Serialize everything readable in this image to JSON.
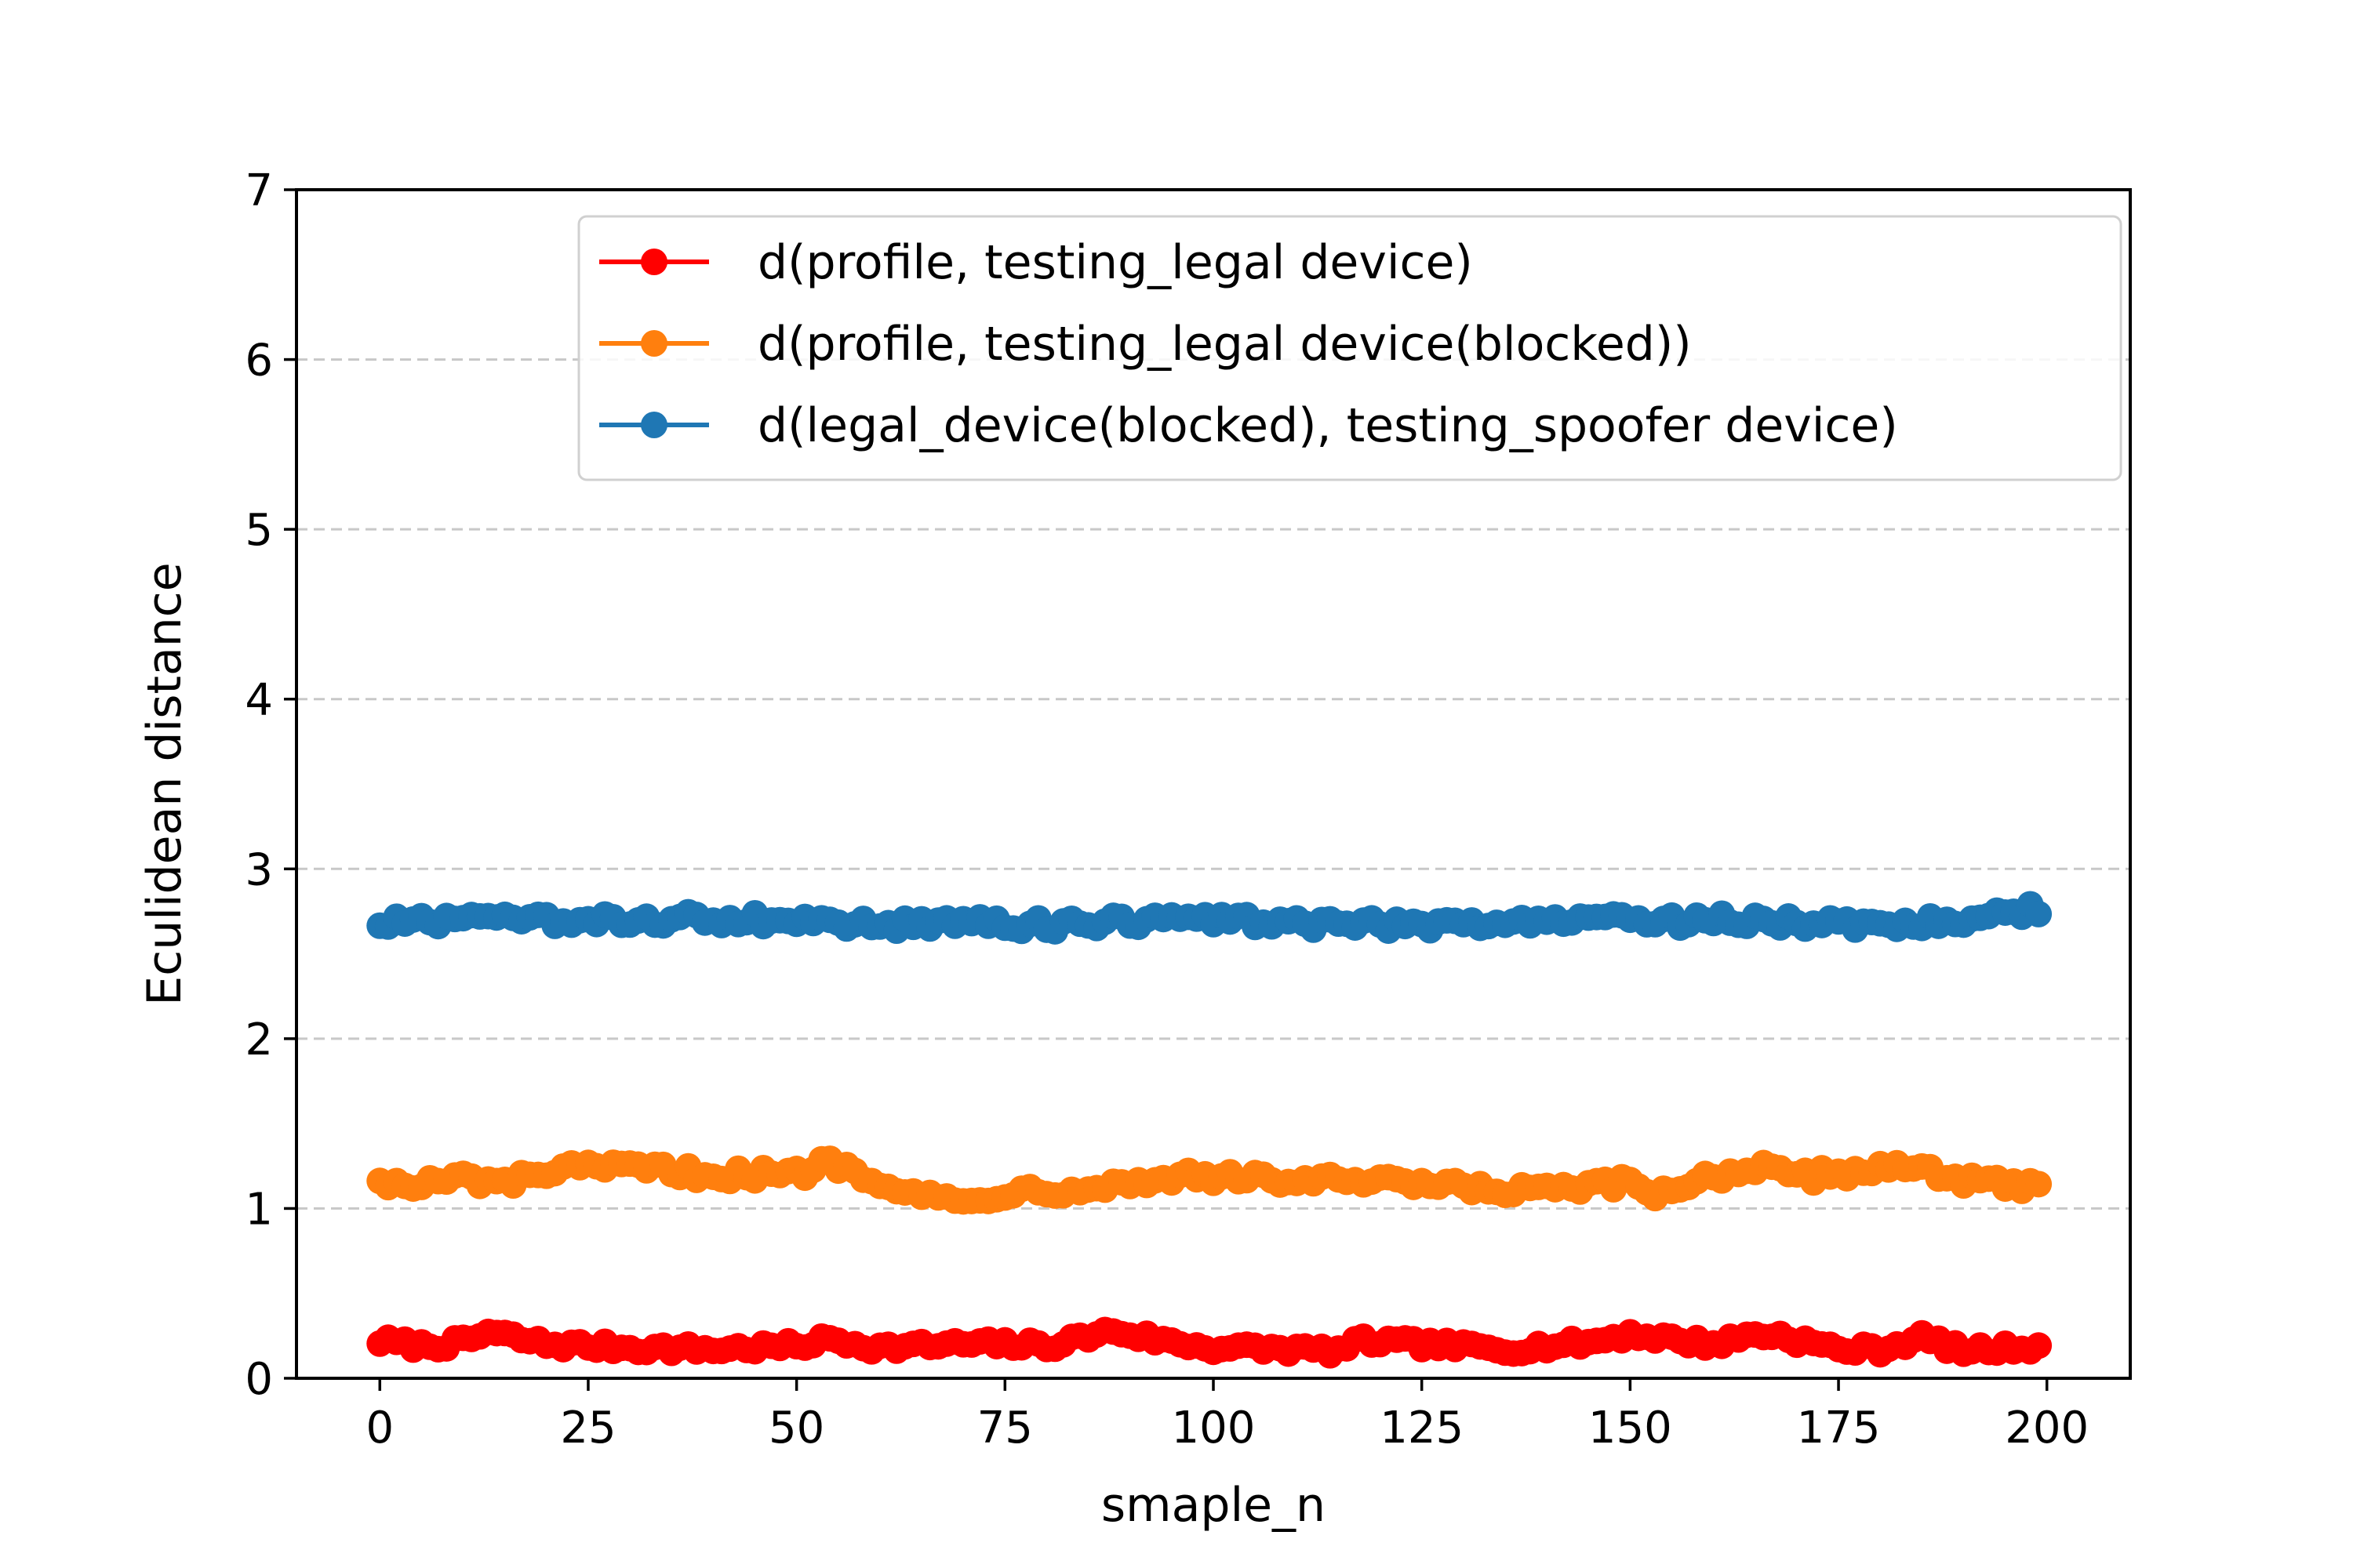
{
  "chart_data": {
    "type": "line",
    "xlabel": "smaple_n",
    "ylabel": "Eculidean distance",
    "xlim": [
      -10,
      210
    ],
    "ylim": [
      0,
      7
    ],
    "xticks": [
      0,
      25,
      50,
      75,
      100,
      125,
      150,
      175,
      200
    ],
    "xtick_labels": [
      "0",
      "25",
      "50",
      "75",
      "100",
      "125",
      "150",
      "175",
      "200"
    ],
    "yticks": [
      0,
      1,
      2,
      3,
      4,
      5,
      6,
      7
    ],
    "ytick_labels": [
      "0",
      "1",
      "2",
      "3",
      "4",
      "5",
      "6",
      "7"
    ],
    "grid": "horizontal dashed",
    "legend_position": "top-center",
    "x": {
      "start": 0,
      "end": 199,
      "step": 1
    },
    "series": [
      {
        "name": "d(profile, testing_legal device)",
        "color": "#ff0000",
        "keypoints": [
          [
            0,
            0.22
          ],
          [
            5,
            0.19
          ],
          [
            10,
            0.21
          ],
          [
            13,
            0.27
          ],
          [
            20,
            0.2
          ],
          [
            30,
            0.18
          ],
          [
            40,
            0.17
          ],
          [
            50,
            0.19
          ],
          [
            54,
            0.23
          ],
          [
            60,
            0.18
          ],
          [
            70,
            0.2
          ],
          [
            75,
            0.2
          ],
          [
            80,
            0.19
          ],
          [
            88,
            0.28
          ],
          [
            95,
            0.21
          ],
          [
            100,
            0.18
          ],
          [
            110,
            0.17
          ],
          [
            115,
            0.16
          ],
          [
            118,
            0.22
          ],
          [
            125,
            0.2
          ],
          [
            135,
            0.17
          ],
          [
            145,
            0.21
          ],
          [
            150,
            0.26
          ],
          [
            160,
            0.2
          ],
          [
            165,
            0.26
          ],
          [
            168,
            0.25
          ],
          [
            175,
            0.17
          ],
          [
            180,
            0.17
          ],
          [
            185,
            0.24
          ],
          [
            190,
            0.16
          ],
          [
            199,
            0.19
          ]
        ],
        "noise": 0.03
      },
      {
        "name": "d(profile, testing_legal device(blocked))",
        "color": "#ff7f0e",
        "keypoints": [
          [
            0,
            1.18
          ],
          [
            3,
            1.12
          ],
          [
            10,
            1.18
          ],
          [
            15,
            1.14
          ],
          [
            20,
            1.22
          ],
          [
            30,
            1.24
          ],
          [
            40,
            1.2
          ],
          [
            50,
            1.2
          ],
          [
            54,
            1.28
          ],
          [
            60,
            1.17
          ],
          [
            65,
            1.08
          ],
          [
            70,
            1.03
          ],
          [
            75,
            1.1
          ],
          [
            80,
            1.11
          ],
          [
            85,
            1.13
          ],
          [
            95,
            1.17
          ],
          [
            97,
            1.22
          ],
          [
            100,
            1.18
          ],
          [
            115,
            1.16
          ],
          [
            125,
            1.14
          ],
          [
            135,
            1.1
          ],
          [
            145,
            1.12
          ],
          [
            150,
            1.15
          ],
          [
            153,
            1.08
          ],
          [
            158,
            1.17
          ],
          [
            165,
            1.24
          ],
          [
            170,
            1.18
          ],
          [
            180,
            1.24
          ],
          [
            185,
            1.25
          ],
          [
            190,
            1.16
          ],
          [
            199,
            1.12
          ]
        ],
        "noise": 0.04
      },
      {
        "name": "d(legal_device(blocked), testing_spoofer device)",
        "color": "#1f77b4",
        "keypoints": [
          [
            0,
            2.68
          ],
          [
            10,
            2.7
          ],
          [
            20,
            2.69
          ],
          [
            30,
            2.7
          ],
          [
            40,
            2.71
          ],
          [
            50,
            2.69
          ],
          [
            60,
            2.67
          ],
          [
            70,
            2.68
          ],
          [
            80,
            2.67
          ],
          [
            90,
            2.69
          ],
          [
            100,
            2.7
          ],
          [
            110,
            2.68
          ],
          [
            120,
            2.67
          ],
          [
            130,
            2.68
          ],
          [
            140,
            2.69
          ],
          [
            145,
            2.74
          ],
          [
            150,
            2.68
          ],
          [
            160,
            2.7
          ],
          [
            170,
            2.68
          ],
          [
            180,
            2.68
          ],
          [
            190,
            2.7
          ],
          [
            199,
            2.77
          ]
        ],
        "noise": 0.04
      }
    ]
  }
}
